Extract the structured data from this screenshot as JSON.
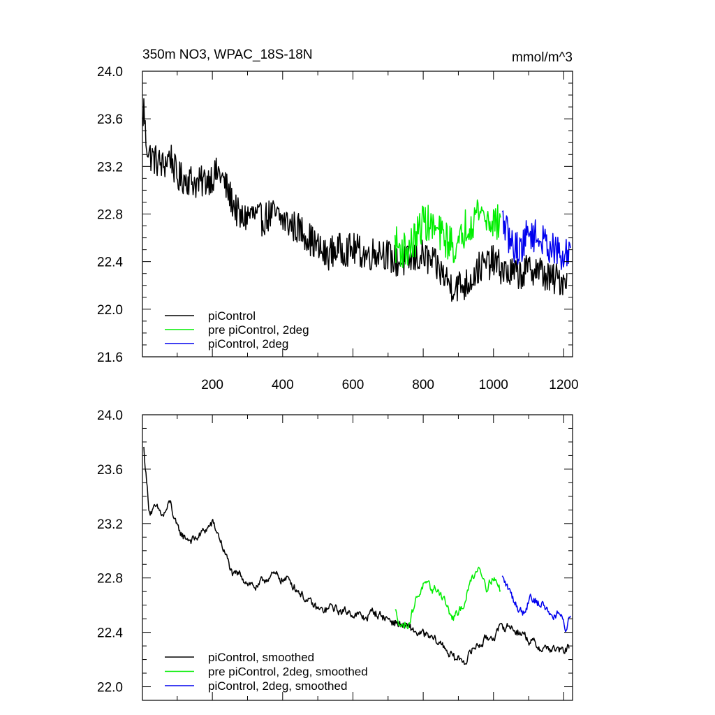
{
  "chart_data": [
    {
      "type": "line",
      "title_left": "350m NO3, WPAC_18S-18N",
      "title_right": "mmol/m^3",
      "xlim": [
        1,
        1225
      ],
      "ylim": [
        21.6,
        24.0
      ],
      "x_ticks": [
        200,
        400,
        600,
        800,
        1000,
        1200
      ],
      "x_tick_labels": [
        "200",
        "400",
        "600",
        "800",
        "1000",
        "1200"
      ],
      "y_ticks": [
        21.6,
        22.0,
        22.4,
        22.8,
        23.2,
        23.6,
        24.0
      ],
      "y_tick_labels": [
        "21.6",
        "22.0",
        "22.4",
        "22.8",
        "23.2",
        "23.6",
        "24.0"
      ],
      "legend_position": "bottom-left",
      "grid": false,
      "series": [
        {
          "name": "piControl",
          "color": "#000000",
          "style": "noisy",
          "x": [
            1,
            5,
            10,
            20,
            40,
            60,
            80,
            100,
            130,
            160,
            190,
            220,
            250,
            280,
            310,
            340,
            370,
            400,
            430,
            460,
            490,
            520,
            550,
            580,
            610,
            640,
            680,
            720,
            760,
            800,
            840,
            880,
            920,
            960,
            1000,
            1040,
            1080,
            1120,
            1160,
            1200,
            1210
          ],
          "y": [
            23.55,
            23.7,
            23.45,
            23.3,
            23.25,
            23.2,
            23.3,
            23.1,
            23.1,
            23.05,
            23.1,
            23.15,
            22.95,
            22.75,
            22.8,
            22.75,
            22.8,
            22.75,
            22.7,
            22.65,
            22.55,
            22.45,
            22.5,
            22.5,
            22.5,
            22.45,
            22.5,
            22.4,
            22.4,
            22.45,
            22.35,
            22.2,
            22.2,
            22.35,
            22.4,
            22.3,
            22.3,
            22.35,
            22.25,
            22.25,
            22.3
          ],
          "noise_amp": 0.14
        },
        {
          "name": "pre piControl, 2deg",
          "color": "#00ee00",
          "style": "noisy",
          "x": [
            720,
            740,
            760,
            780,
            800,
            820,
            840,
            860,
            880,
            900,
            920,
            940,
            960,
            980,
            1000,
            1020
          ],
          "y": [
            22.55,
            22.5,
            22.5,
            22.6,
            22.75,
            22.7,
            22.65,
            22.6,
            22.55,
            22.5,
            22.7,
            22.75,
            22.85,
            22.75,
            22.75,
            22.7
          ],
          "noise_amp": 0.16
        },
        {
          "name": "piControl, 2deg",
          "color": "#0000ee",
          "style": "noisy",
          "x": [
            1025,
            1050,
            1075,
            1100,
            1125,
            1150,
            1175,
            1200,
            1220
          ],
          "y": [
            22.75,
            22.55,
            22.5,
            22.65,
            22.6,
            22.55,
            22.5,
            22.4,
            22.55
          ],
          "noise_amp": 0.14
        }
      ]
    },
    {
      "type": "line",
      "title_left": "",
      "title_right": "",
      "xlim": [
        1,
        1225
      ],
      "ylim": [
        21.9,
        24.0
      ],
      "x_ticks": [
        200,
        400,
        600,
        800,
        1000,
        1200
      ],
      "x_tick_labels": [],
      "y_ticks": [
        22.0,
        22.4,
        22.8,
        23.2,
        23.6,
        24.0
      ],
      "y_tick_labels": [
        "22.0",
        "22.4",
        "22.8",
        "23.2",
        "23.6",
        "24.0"
      ],
      "legend_position": "bottom-left",
      "grid": false,
      "series": [
        {
          "name": "piControl, smoothed",
          "color": "#000000",
          "style": "smooth",
          "x": [
            5,
            10,
            20,
            40,
            60,
            80,
            100,
            120,
            150,
            180,
            200,
            220,
            240,
            260,
            280,
            300,
            330,
            360,
            390,
            420,
            450,
            480,
            510,
            540,
            570,
            600,
            630,
            660,
            700,
            740,
            780,
            820,
            860,
            890,
            920,
            950,
            980,
            1010,
            1040,
            1080,
            1120,
            1160,
            1200,
            1215
          ],
          "y": [
            23.75,
            23.6,
            23.3,
            23.3,
            23.25,
            23.35,
            23.15,
            23.1,
            23.08,
            23.15,
            23.2,
            23.1,
            22.95,
            22.8,
            22.82,
            22.78,
            22.72,
            22.82,
            22.8,
            22.78,
            22.7,
            22.6,
            22.55,
            22.58,
            22.55,
            22.55,
            22.5,
            22.55,
            22.5,
            22.45,
            22.4,
            22.35,
            22.3,
            22.2,
            22.2,
            22.3,
            22.35,
            22.4,
            22.45,
            22.4,
            22.3,
            22.28,
            22.25,
            22.3
          ],
          "noise_amp": 0.06
        },
        {
          "name": "pre piControl, 2deg, smoothed",
          "color": "#00ee00",
          "style": "smooth",
          "x": [
            720,
            740,
            760,
            780,
            800,
            820,
            840,
            860,
            880,
            900,
            920,
            940,
            960,
            980,
            1000,
            1020
          ],
          "y": [
            22.55,
            22.45,
            22.48,
            22.65,
            22.75,
            22.7,
            22.72,
            22.65,
            22.5,
            22.52,
            22.65,
            22.8,
            22.9,
            22.75,
            22.82,
            22.7
          ],
          "noise_amp": 0.06
        },
        {
          "name": "piControl, 2deg, smoothed",
          "color": "#0000ee",
          "style": "smooth",
          "x": [
            1025,
            1045,
            1065,
            1085,
            1105,
            1125,
            1145,
            1165,
            1185,
            1205,
            1220
          ],
          "y": [
            22.8,
            22.7,
            22.6,
            22.55,
            22.68,
            22.62,
            22.6,
            22.52,
            22.55,
            22.42,
            22.55
          ],
          "noise_amp": 0.06
        }
      ]
    }
  ]
}
